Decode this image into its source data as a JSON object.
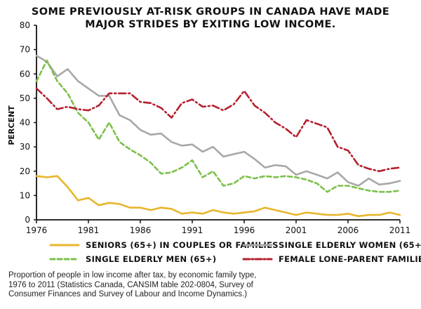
{
  "title_line1": "Some previously at-risk groups in Canada have made",
  "title_line2": "major strides by exiting low income.",
  "caption_line1": "Proportion of people in low income after tax, by economic family type,",
  "caption_line2": "1976 to 2011 (Statistics Canada, CANSIM table 202-0804, Survey of",
  "caption_line3": "Consumer Finances and Survey of Labour and Income Dynamics.)",
  "legend": [
    {
      "label": "SENIORS (65+) IN COUPLES OR FAMILIES",
      "color": "#e8b62c",
      "style": "solid"
    },
    {
      "label": "SINGLE ELDERLY WOMEN (65+)",
      "color": "#a8a8a8",
      "style": "solid"
    },
    {
      "label": "SINGLE ELDERLY MEN (65+)",
      "color": "#7cc04a",
      "style": "dashed"
    },
    {
      "label": "FEMALE LONE-PARENT FAMILIES",
      "color": "#b5202e",
      "style": "dashdot"
    }
  ],
  "chart_data": {
    "type": "line",
    "title": "Some previously at-risk groups in Canada have made major strides by exiting low income.",
    "xlabel": "",
    "ylabel": "PERCENT",
    "xlim": [
      1976,
      2011
    ],
    "ylim": [
      0,
      80
    ],
    "xticks": [
      1976,
      1981,
      1986,
      1991,
      1996,
      2001,
      2006,
      2011
    ],
    "yticks": [
      0,
      10,
      20,
      30,
      40,
      50,
      60,
      70,
      80
    ],
    "grid": false,
    "legend_position": "bottom",
    "x": [
      1976,
      1977,
      1978,
      1979,
      1980,
      1981,
      1982,
      1983,
      1984,
      1985,
      1986,
      1987,
      1988,
      1989,
      1990,
      1991,
      1992,
      1993,
      1994,
      1995,
      1996,
      1997,
      1998,
      1999,
      2000,
      2001,
      2002,
      2003,
      2004,
      2005,
      2006,
      2007,
      2008,
      2009,
      2010,
      2011
    ],
    "series": [
      {
        "name": "SENIORS (65+) IN COUPLES OR FAMILIES",
        "color": "#e8b62c",
        "style": "solid",
        "values": [
          18,
          17.5,
          18,
          13.5,
          8,
          9,
          6,
          7,
          6.5,
          5,
          5,
          4,
          5,
          4.5,
          2.5,
          3,
          2.5,
          4,
          3,
          2.5,
          3,
          3.5,
          5,
          4,
          3,
          2,
          3,
          2.5,
          2,
          2,
          2.5,
          1.5,
          2,
          2,
          3,
          2
        ]
      },
      {
        "name": "SINGLE ELDERLY WOMEN (65+)",
        "color": "#a8a8a8",
        "style": "solid",
        "values": [
          67.5,
          65,
          59,
          62,
          57,
          54,
          51,
          51,
          43,
          41,
          37,
          35,
          35.5,
          32,
          30.5,
          31,
          28,
          30,
          26,
          27,
          28,
          25,
          21.5,
          22.5,
          22,
          18.5,
          20,
          18.5,
          17,
          19.5,
          15.5,
          14,
          17,
          14.5,
          15,
          16
        ]
      },
      {
        "name": "SINGLE ELDERLY MEN (65+)",
        "color": "#7cc04a",
        "style": "dashed",
        "values": [
          57,
          65.5,
          57,
          52,
          44,
          40,
          33,
          40,
          32,
          29,
          26.5,
          23.5,
          19,
          19.5,
          21.5,
          24.5,
          17.5,
          20,
          14,
          15,
          18,
          17,
          18,
          17.5,
          18,
          17.5,
          16.5,
          15,
          11.5,
          14,
          14,
          13,
          12,
          11.5,
          11.5,
          12
        ]
      },
      {
        "name": "FEMALE LONE-PARENT FAMILIES",
        "color": "#b5202e",
        "style": "dashdot",
        "values": [
          54,
          50,
          45.5,
          46.5,
          45.5,
          45,
          47,
          52,
          52,
          52,
          48.5,
          48,
          46,
          42,
          48,
          49.5,
          46.5,
          47,
          45,
          47.5,
          53,
          47,
          44,
          40,
          37.5,
          34,
          41,
          39.5,
          38,
          30,
          28.5,
          22.5,
          21,
          20,
          21,
          21.5
        ]
      }
    ]
  }
}
